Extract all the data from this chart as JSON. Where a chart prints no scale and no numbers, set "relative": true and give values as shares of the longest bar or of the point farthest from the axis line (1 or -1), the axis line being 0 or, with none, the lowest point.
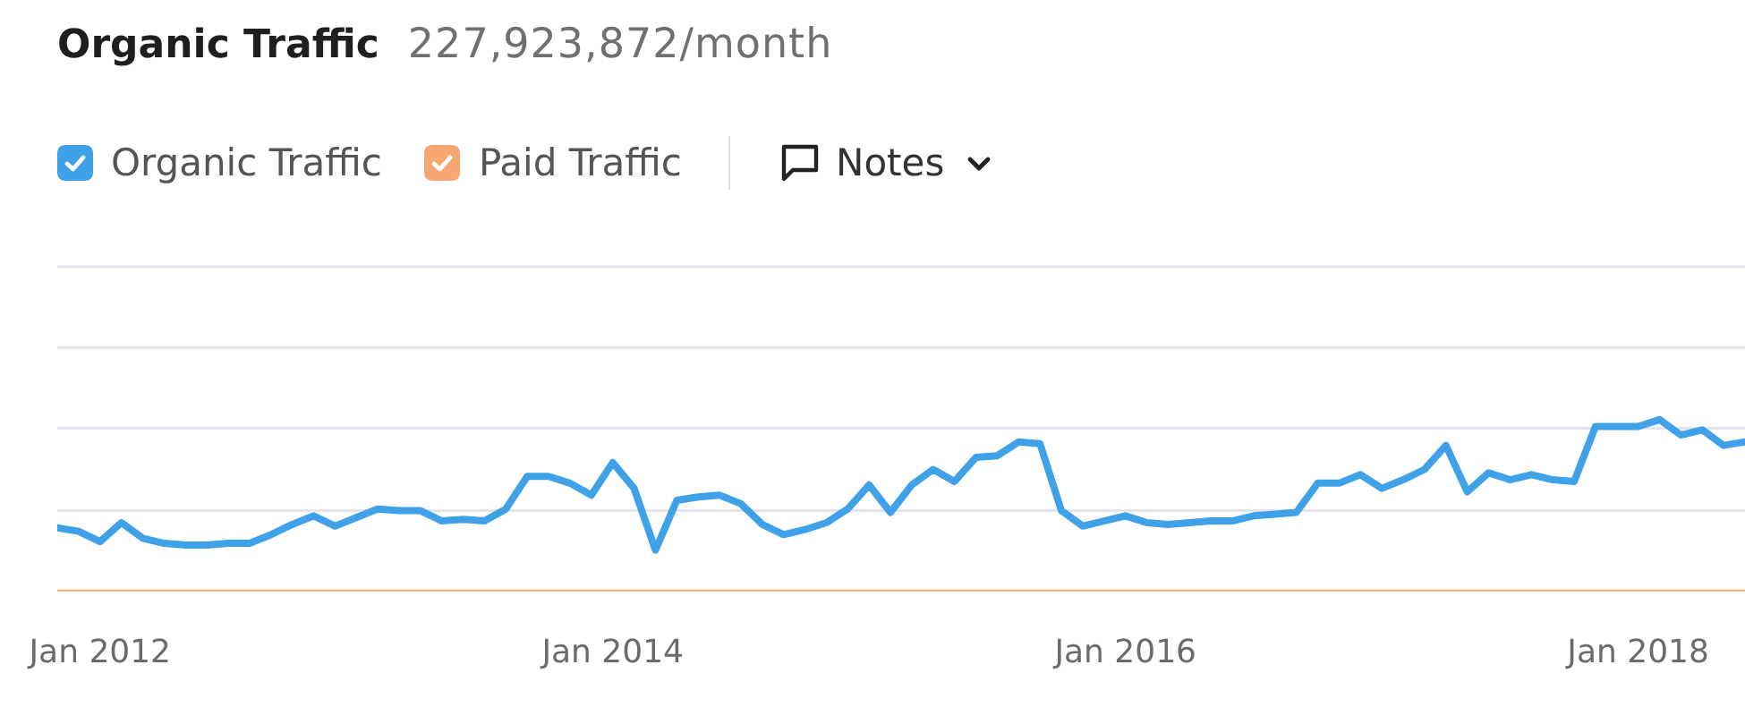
{
  "chart_data": {
    "type": "line",
    "title": "Organic Traffic",
    "subtitle": "227,923,872/month",
    "relative": true,
    "x": [
      "2011-11",
      "2011-12",
      "2012-01",
      "2012-02",
      "2012-03",
      "2012-04",
      "2012-05",
      "2012-06",
      "2012-07",
      "2012-08",
      "2012-09",
      "2012-10",
      "2012-11",
      "2012-12",
      "2013-01",
      "2013-02",
      "2013-03",
      "2013-04",
      "2013-05",
      "2013-06",
      "2013-07",
      "2013-08",
      "2013-09",
      "2013-10",
      "2013-11",
      "2013-12",
      "2014-01",
      "2014-02",
      "2014-03",
      "2014-04",
      "2014-05",
      "2014-06",
      "2014-07",
      "2014-08",
      "2014-09",
      "2014-10",
      "2014-11",
      "2014-12",
      "2015-01",
      "2015-02",
      "2015-03",
      "2015-04",
      "2015-05",
      "2015-06",
      "2015-07",
      "2015-08",
      "2015-09",
      "2015-10",
      "2015-11",
      "2015-12",
      "2016-01",
      "2016-02",
      "2016-03",
      "2016-04",
      "2016-05",
      "2016-06",
      "2016-07",
      "2016-08",
      "2016-09",
      "2016-10",
      "2016-11",
      "2016-12",
      "2017-01",
      "2017-02",
      "2017-03",
      "2017-04",
      "2017-05",
      "2017-06",
      "2017-07",
      "2017-08",
      "2017-09",
      "2017-10",
      "2017-11",
      "2017-12",
      "2018-01",
      "2018-02",
      "2018-03",
      "2018-04",
      "2018-05",
      "2018-06"
    ],
    "series": [
      {
        "name": "Organic Traffic",
        "color": "#3fa2e8",
        "values": [
          0.37,
          0.35,
          0.29,
          0.4,
          0.31,
          0.28,
          0.27,
          0.27,
          0.28,
          0.28,
          0.33,
          0.39,
          0.44,
          0.38,
          0.43,
          0.48,
          0.47,
          0.47,
          0.41,
          0.42,
          0.41,
          0.48,
          0.67,
          0.67,
          0.63,
          0.56,
          0.75,
          0.6,
          0.24,
          0.53,
          0.55,
          0.56,
          0.51,
          0.39,
          0.33,
          0.36,
          0.4,
          0.48,
          0.62,
          0.46,
          0.62,
          0.71,
          0.64,
          0.78,
          0.79,
          0.87,
          0.86,
          0.47,
          0.38,
          0.41,
          0.44,
          0.4,
          0.39,
          0.4,
          0.41,
          0.41,
          0.44,
          0.45,
          0.46,
          0.63,
          0.63,
          0.68,
          0.6,
          0.65,
          0.71,
          0.85,
          0.58,
          0.69,
          0.65,
          0.68,
          0.65,
          0.64,
          0.96,
          0.96,
          0.96,
          1,
          0.91,
          0.94,
          0.85,
          0.87
        ]
      },
      {
        "name": "Paid Traffic",
        "color": "#f7a872",
        "x": [
          "2011-11",
          "2018-06"
        ],
        "values": [
          0,
          0
        ]
      }
    ],
    "xlim": [
      "2011-11",
      "2018-06"
    ],
    "xticks": [
      {
        "value": "2012-01",
        "label": "Jan 2012"
      },
      {
        "value": "2014-01",
        "label": "Jan 2014"
      },
      {
        "value": "2016-01",
        "label": "Jan 2016"
      },
      {
        "value": "2018-01",
        "label": "Jan 2018"
      }
    ],
    "ref_lines": [
      {
        "axis": "y",
        "value": 0.47,
        "color": "#e4e4ec"
      },
      {
        "axis": "y",
        "value": 0.95,
        "color": "#e4e4ec"
      },
      {
        "axis": "y",
        "value": 1.42,
        "color": "#e4e4ec"
      },
      {
        "axis": "y",
        "value": 1.89,
        "color": "#e4e4ec"
      }
    ],
    "legend": "top left",
    "annotations": [
      "Notes"
    ]
  }
}
